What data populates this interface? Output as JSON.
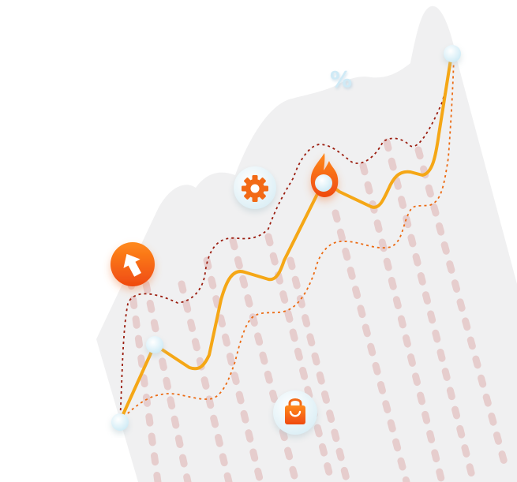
{
  "colors": {
    "background": "#ffffff",
    "mountain": "#f0f0f1",
    "main_line": "#f5a716",
    "upper_band": "#9b1c0e",
    "lower_band": "#ec6a12",
    "stripes": "#e6caca",
    "node": "#dff3fb",
    "badge_orange": "#f26a14",
    "percent": "#cfeaf6"
  },
  "icons": [
    "arrow-up-icon",
    "gear-icon",
    "flame-icon",
    "shopping-bag-icon",
    "percent-icon"
  ],
  "percent_symbol": "%"
}
